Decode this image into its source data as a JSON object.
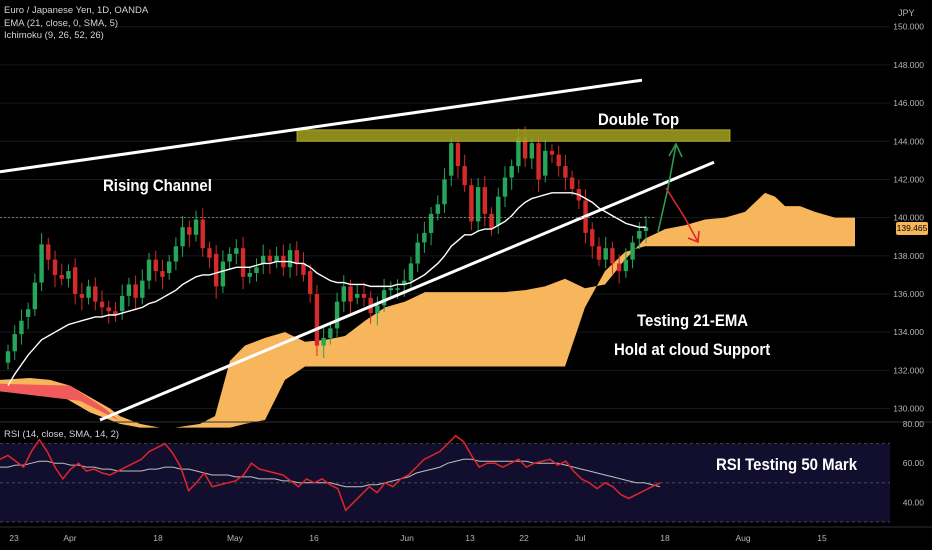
{
  "header": {
    "symbol_line": "Euro / Japanese Yen, 1D, OANDA",
    "ema_line": "EMA (21, close, 0, SMA, 5)",
    "ichimoku_line": "Ichimoku (9, 26, 52, 26)",
    "rsi_line": "RSI (14, close, SMA, 14, 2)",
    "currency": "JPY"
  },
  "annotations": {
    "rising_channel": "Rising Channel",
    "double_top": "Double Top",
    "testing_ema": "Testing 21-EMA",
    "hold_cloud": "Hold at cloud Support",
    "rsi_test": "RSI Testing 50 Mark"
  },
  "colors": {
    "background": "#000000",
    "up_candle": "#26a65b",
    "down_candle": "#d42a2a",
    "cloud": "#f7b55c",
    "cloud_bear": "#f05a5a",
    "ema": "#ffffff",
    "rsi": "#e0252c",
    "rsi_ma": "#bfbfbf",
    "zone": "#9c9a1e",
    "arrow_up": "#2e9b4e",
    "arrow_down": "#e0252c"
  },
  "chart_data": {
    "type": "candlestick",
    "x_ticks": [
      "23",
      "Apr",
      "18",
      "May",
      "16",
      "Jun",
      "13",
      "22",
      "Jul",
      "18",
      "Aug",
      "15"
    ],
    "y_ticks": [
      130.0,
      132.0,
      134.0,
      136.0,
      138.0,
      140.0,
      142.0,
      144.0,
      146.0,
      148.0,
      150.0
    ],
    "ylim": [
      129.4,
      151.4
    ],
    "last_price": 139.465,
    "candles_close": [
      133.0,
      133.9,
      134.6,
      135.2,
      136.6,
      138.6,
      137.8,
      137.0,
      136.8,
      137.2,
      136.0,
      135.8,
      136.4,
      135.6,
      135.3,
      135.1,
      134.9,
      135.9,
      136.5,
      135.8,
      136.7,
      137.8,
      137.2,
      136.9,
      137.7,
      138.5,
      139.5,
      139.1,
      139.9,
      138.4,
      137.9,
      136.4,
      137.7,
      138.1,
      138.4,
      136.9,
      137.1,
      137.4,
      138.0,
      137.7,
      138.0,
      137.4,
      138.3,
      137.6,
      137.0,
      136.0,
      133.3,
      133.7,
      134.2,
      135.6,
      136.4,
      135.6,
      136.0,
      135.8,
      135.0,
      135.4,
      136.2,
      136.3,
      136.3,
      136.7,
      137.6,
      138.7,
      139.2,
      140.2,
      140.7,
      142.0,
      143.9,
      142.7,
      141.7,
      139.8,
      141.6,
      140.2,
      139.4,
      141.1,
      142.1,
      142.7,
      144.2,
      143.1,
      143.9,
      142.0,
      143.5,
      143.3,
      142.7,
      142.1,
      141.5,
      140.9,
      139.2,
      138.5,
      137.8,
      138.4,
      137.6,
      137.2,
      137.8,
      138.7,
      139.3,
      139.5
    ],
    "ema21": [
      131.2,
      131.8,
      132.3,
      132.8,
      133.2,
      133.6,
      133.8,
      134.0,
      134.2,
      134.4,
      134.5,
      134.6,
      134.7,
      134.8,
      134.8,
      134.9,
      134.9,
      135.0,
      135.1,
      135.2,
      135.3,
      135.5,
      135.6,
      135.8,
      136.0,
      136.2,
      136.5,
      136.7,
      136.9,
      137.0,
      137.0,
      137.1,
      137.2,
      137.3,
      137.4,
      137.4,
      137.4,
      137.5,
      137.6,
      137.6,
      137.7,
      137.7,
      137.7,
      137.6,
      137.6,
      137.4,
      137.1,
      136.9,
      136.7,
      136.6,
      136.6,
      136.5,
      136.5,
      136.5,
      136.4,
      136.4,
      136.4,
      136.4,
      136.5,
      136.5,
      136.6,
      136.8,
      137.0,
      137.3,
      137.6,
      138.0,
      138.5,
      138.8,
      139.1,
      139.1,
      139.3,
      139.4,
      139.4,
      139.6,
      139.8,
      140.1,
      140.5,
      140.8,
      141.0,
      141.1,
      141.2,
      141.3,
      141.3,
      141.3,
      141.3,
      141.2,
      141.0,
      140.8,
      140.5,
      140.3,
      140.1,
      139.9,
      139.7,
      139.6,
      139.5,
      139.5
    ],
    "cloud_top_x": [
      0,
      30,
      50,
      70,
      90,
      110,
      120,
      140,
      160,
      175,
      200,
      215,
      230,
      245,
      265,
      285,
      305,
      325,
      345,
      365,
      385,
      405,
      425,
      445,
      465,
      485,
      505,
      525,
      545,
      565,
      585,
      605,
      625,
      645,
      665,
      685,
      705,
      725,
      745,
      755,
      765,
      775,
      785,
      800,
      815,
      835,
      855
    ],
    "cloud_top_y": [
      131.5,
      131.6,
      131.5,
      131.2,
      130.6,
      130.0,
      129.6,
      129.2,
      129.0,
      129.0,
      129.2,
      129.6,
      132.5,
      133.3,
      133.7,
      134.0,
      133.5,
      133.6,
      133.8,
      134.6,
      135.3,
      135.6,
      136.1,
      136.1,
      136.1,
      136.1,
      136.1,
      136.2,
      136.4,
      136.8,
      136.3,
      136.5,
      137.8,
      138.9,
      139.4,
      139.6,
      139.9,
      140.0,
      140.3,
      140.8,
      141.3,
      141.1,
      140.6,
      140.6,
      140.3,
      140.0,
      140.0
    ],
    "cloud_bottom_y": [
      131.0,
      131.0,
      131.0,
      130.4,
      129.8,
      129.4,
      129.2,
      129.0,
      129.0,
      129.0,
      129.0,
      129.0,
      129.0,
      129.2,
      129.4,
      131.5,
      132.2,
      132.2,
      132.2,
      132.2,
      132.2,
      132.2,
      132.2,
      132.2,
      132.2,
      132.2,
      132.2,
      132.2,
      132.2,
      132.2,
      135.3,
      137.2,
      138.2,
      138.5,
      138.5,
      138.5,
      138.5,
      138.5,
      138.5,
      138.5,
      138.5,
      138.5,
      138.5,
      138.5,
      138.5,
      138.5,
      138.5
    ],
    "levels": {
      "double_top_zone": [
        144.0,
        144.6
      ],
      "channel_upper": [
        [
          0,
          142.4
        ],
        [
          642,
          147.2
        ]
      ],
      "channel_lower": [
        [
          100,
          129.4
        ],
        [
          714,
          142.9
        ]
      ],
      "channel_mid": [
        [
          0,
          140.0
        ],
        [
          655,
          140.0
        ]
      ]
    },
    "rsi": {
      "y_ticks": [
        40.0,
        60.0,
        80.0
      ],
      "ylim": [
        30,
        80
      ],
      "values": [
        62,
        64,
        61,
        58,
        66,
        72,
        66,
        58,
        52,
        57,
        60,
        56,
        57,
        55,
        54,
        56,
        58,
        60,
        62,
        66,
        68,
        70,
        65,
        58,
        46,
        50,
        55,
        48,
        49,
        50,
        51,
        54,
        60,
        57,
        56,
        55,
        54,
        51,
        48,
        52,
        50,
        52,
        49,
        47,
        36,
        40,
        44,
        48,
        45,
        50,
        48,
        52,
        54,
        58,
        62,
        64,
        66,
        70,
        74,
        71,
        64,
        58,
        60,
        60,
        58,
        60,
        62,
        58,
        60,
        61,
        62,
        59,
        61,
        56,
        52,
        50,
        47,
        50,
        48,
        44,
        42,
        44,
        46,
        48,
        50
      ],
      "ma": [
        58,
        58,
        59,
        59,
        60,
        61,
        61,
        60,
        60,
        59,
        59,
        58,
        58,
        57,
        57,
        56,
        56,
        56,
        56,
        57,
        57,
        58,
        58,
        57,
        57,
        56,
        55,
        54,
        54,
        54,
        53,
        53,
        53,
        52,
        52,
        52,
        51,
        51,
        50,
        50,
        50,
        50,
        50,
        49,
        48,
        48,
        48,
        49,
        49,
        50,
        51,
        52,
        53,
        55,
        56,
        57,
        58,
        60,
        61,
        62,
        62,
        61,
        61,
        61,
        61,
        61,
        61,
        61,
        60,
        60,
        60,
        60,
        59,
        58,
        57,
        56,
        55,
        54,
        53,
        52,
        51,
        50,
        50,
        49,
        48
      ]
    }
  }
}
